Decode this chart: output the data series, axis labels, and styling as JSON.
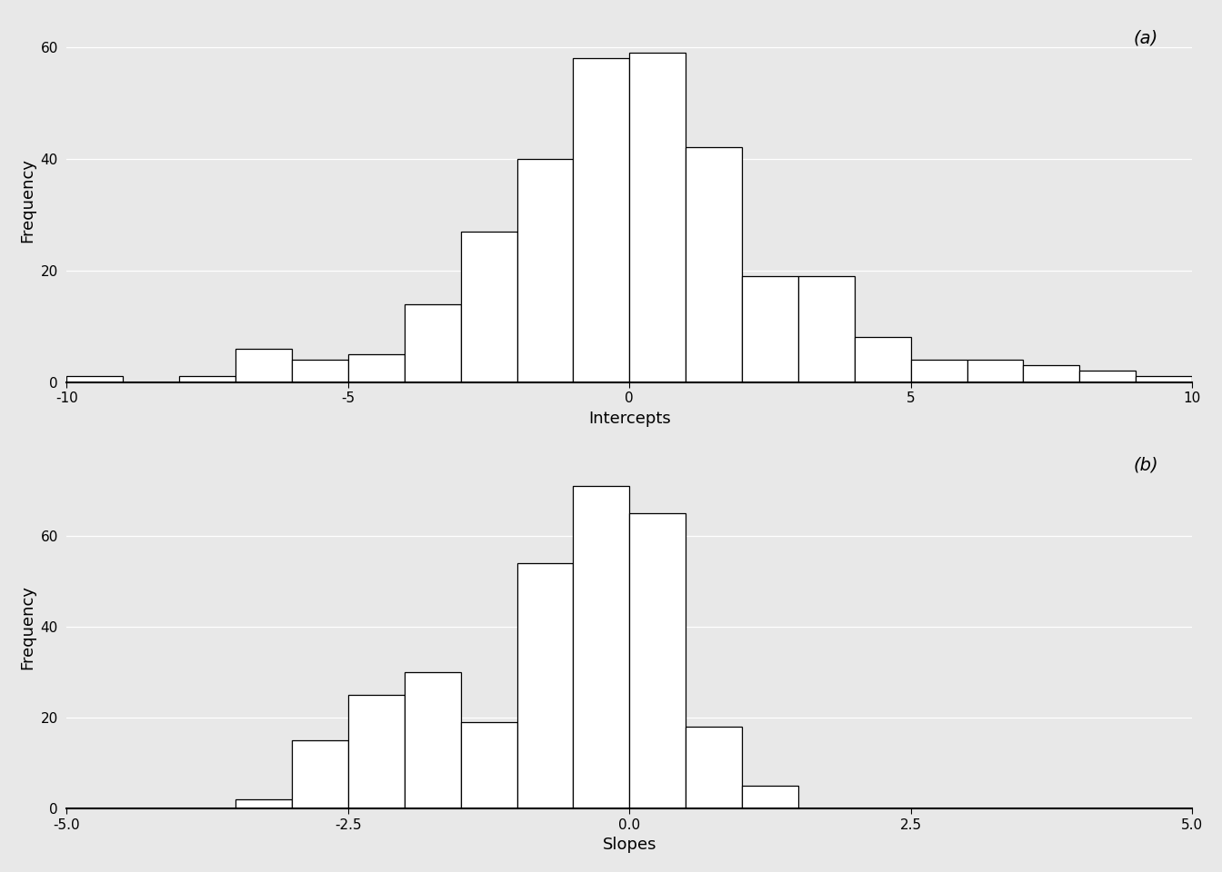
{
  "intercepts_bins": [
    -10,
    -9,
    -8,
    -7,
    -6,
    -5,
    -4,
    -3,
    -2,
    -1,
    0,
    1,
    2,
    3,
    4,
    5,
    6,
    7,
    8,
    9,
    10
  ],
  "intercepts_counts": [
    1,
    0,
    1,
    6,
    4,
    5,
    14,
    27,
    40,
    58,
    59,
    42,
    19,
    19,
    8,
    4,
    4,
    3,
    2,
    1
  ],
  "slopes_bins": [
    -5.0,
    -4.5,
    -4.0,
    -3.5,
    -3.0,
    -2.5,
    -2.0,
    -1.5,
    -1.0,
    -0.5,
    0.0,
    0.5,
    1.0,
    1.5,
    2.0,
    2.5,
    3.0,
    3.5,
    4.0,
    4.5,
    5.0
  ],
  "slopes_counts": [
    0,
    0,
    0,
    2,
    15,
    25,
    30,
    19,
    54,
    71,
    65,
    18,
    5,
    0,
    0,
    0,
    0,
    0,
    0,
    0
  ],
  "label_a": "(a)",
  "label_b": "(b)",
  "xlabel_a": "Intercepts",
  "xlabel_b": "Slopes",
  "ylabel": "Frequency",
  "xlim_a": [
    -10,
    10
  ],
  "xlim_b": [
    -5.0,
    5.0
  ],
  "ylim_a": [
    0,
    65
  ],
  "ylim_b": [
    0,
    80
  ],
  "yticks_a": [
    0,
    20,
    40,
    60
  ],
  "yticks_b": [
    0,
    20,
    40,
    60
  ],
  "xticks_a": [
    -10,
    -5,
    0,
    5,
    10
  ],
  "xticks_b": [
    -5.0,
    -2.5,
    0.0,
    2.5,
    5.0
  ],
  "xtick_labels_a": [
    "-10",
    "-5",
    "0",
    "5",
    "10"
  ],
  "xtick_labels_b": [
    "-5.0",
    "-2.5",
    "0.0",
    "2.5",
    "5.0"
  ],
  "bg_color": "#e8e8e8",
  "bar_fill": "white",
  "bar_edge": "black",
  "grid_color": "white",
  "title_fontsize": 14,
  "label_fontsize": 13,
  "tick_fontsize": 11
}
